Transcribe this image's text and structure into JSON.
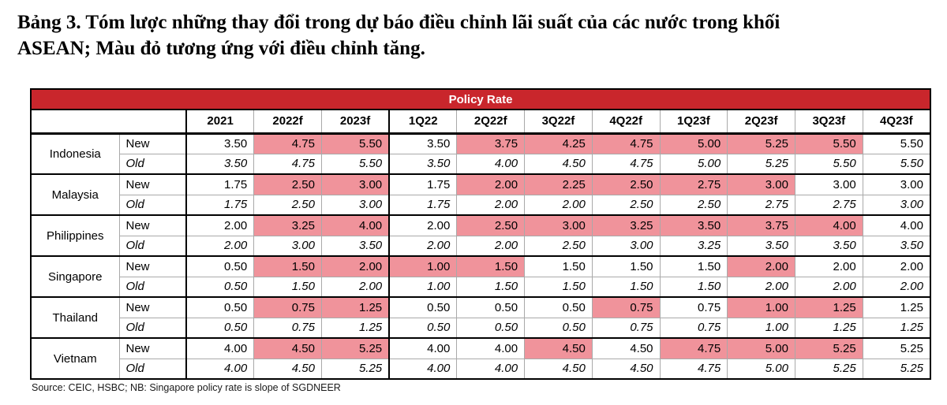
{
  "title": {
    "line1": "Bảng 3. Tóm lược những thay đổi trong dự báo điều chỉnh lãi suất của các nước trong khối",
    "line2": "ASEAN; Màu đỏ tương ứng với điều chỉnh tăng."
  },
  "colors": {
    "banner_red": "#C9262C",
    "highlight_pink": "#F0939B"
  },
  "table": {
    "banner": "Policy Rate",
    "columns": [
      "2021",
      "2022f",
      "2023f",
      "1Q22",
      "2Q22f",
      "3Q22f",
      "4Q22f",
      "1Q23f",
      "2Q23f",
      "3Q23f",
      "4Q23f"
    ],
    "row_labels": {
      "new": "New",
      "old": "Old"
    },
    "countries": [
      {
        "name": "Indonesia",
        "new": {
          "values": [
            "3.50",
            "4.75",
            "5.50",
            "3.50",
            "3.75",
            "4.25",
            "4.75",
            "5.00",
            "5.25",
            "5.50",
            "5.50"
          ],
          "highlight": [
            false,
            true,
            true,
            false,
            true,
            true,
            true,
            true,
            true,
            true,
            false
          ]
        },
        "old": {
          "values": [
            "3.50",
            "4.75",
            "5.50",
            "3.50",
            "4.00",
            "4.50",
            "4.75",
            "5.00",
            "5.25",
            "5.50",
            "5.50"
          ]
        }
      },
      {
        "name": "Malaysia",
        "new": {
          "values": [
            "1.75",
            "2.50",
            "3.00",
            "1.75",
            "2.00",
            "2.25",
            "2.50",
            "2.75",
            "3.00",
            "3.00",
            "3.00"
          ],
          "highlight": [
            false,
            true,
            true,
            false,
            true,
            true,
            true,
            true,
            true,
            false,
            false
          ]
        },
        "old": {
          "values": [
            "1.75",
            "2.50",
            "3.00",
            "1.75",
            "2.00",
            "2.00",
            "2.50",
            "2.50",
            "2.75",
            "2.75",
            "3.00"
          ]
        }
      },
      {
        "name": "Philippines",
        "new": {
          "values": [
            "2.00",
            "3.25",
            "4.00",
            "2.00",
            "2.50",
            "3.00",
            "3.25",
            "3.50",
            "3.75",
            "4.00",
            "4.00"
          ],
          "highlight": [
            false,
            true,
            true,
            false,
            true,
            true,
            true,
            true,
            true,
            true,
            false
          ]
        },
        "old": {
          "values": [
            "2.00",
            "3.00",
            "3.50",
            "2.00",
            "2.00",
            "2.50",
            "3.00",
            "3.25",
            "3.50",
            "3.50",
            "3.50"
          ]
        }
      },
      {
        "name": "Singapore",
        "new": {
          "values": [
            "0.50",
            "1.50",
            "2.00",
            "1.00",
            "1.50",
            "1.50",
            "1.50",
            "1.50",
            "2.00",
            "2.00",
            "2.00"
          ],
          "highlight": [
            false,
            true,
            true,
            true,
            true,
            false,
            false,
            false,
            true,
            false,
            false
          ]
        },
        "old": {
          "values": [
            "0.50",
            "1.50",
            "2.00",
            "1.00",
            "1.50",
            "1.50",
            "1.50",
            "1.50",
            "2.00",
            "2.00",
            "2.00"
          ]
        }
      },
      {
        "name": "Thailand",
        "new": {
          "values": [
            "0.50",
            "0.75",
            "1.25",
            "0.50",
            "0.50",
            "0.50",
            "0.75",
            "0.75",
            "1.00",
            "1.25",
            "1.25"
          ],
          "highlight": [
            false,
            true,
            true,
            false,
            false,
            false,
            true,
            false,
            true,
            true,
            false
          ]
        },
        "old": {
          "values": [
            "0.50",
            "0.75",
            "1.25",
            "0.50",
            "0.50",
            "0.50",
            "0.75",
            "0.75",
            "1.00",
            "1.25",
            "1.25"
          ]
        }
      },
      {
        "name": "Vietnam",
        "new": {
          "values": [
            "4.00",
            "4.50",
            "5.25",
            "4.00",
            "4.00",
            "4.50",
            "4.50",
            "4.75",
            "5.00",
            "5.25",
            "5.25"
          ],
          "highlight": [
            false,
            true,
            true,
            false,
            false,
            true,
            false,
            true,
            true,
            true,
            false
          ]
        },
        "old": {
          "values": [
            "4.00",
            "4.50",
            "5.25",
            "4.00",
            "4.00",
            "4.50",
            "4.50",
            "4.75",
            "5.00",
            "5.25",
            "5.25"
          ]
        }
      }
    ]
  },
  "footer": {
    "source": "Source: CEIC, HSBC; NB: Singapore policy rate is slope of SGDNEER"
  }
}
